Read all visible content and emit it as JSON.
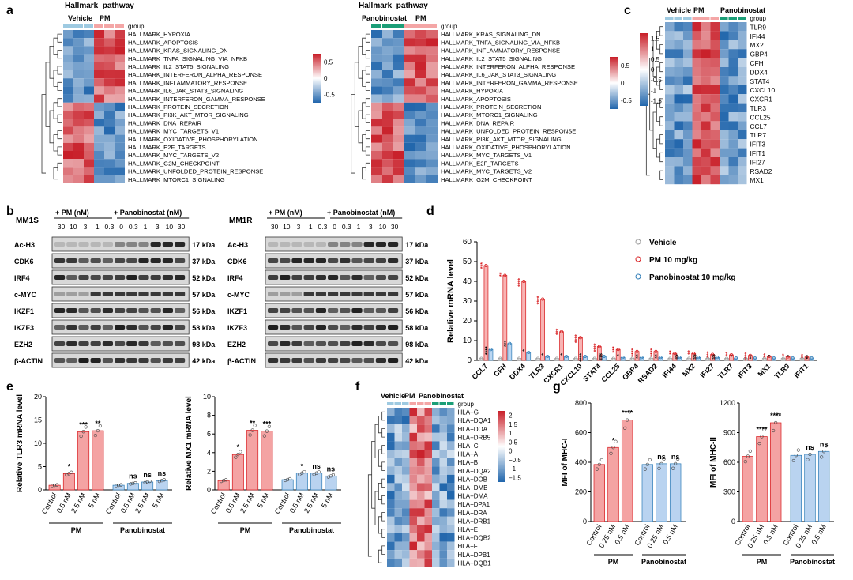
{
  "palette": {
    "red": "#d7191c",
    "blue": "#2c7bb6",
    "teal": "#1b9e77",
    "pink": "#f4a6a6",
    "light_blue": "#9ecae1",
    "bar_red": "#f08080",
    "bar_blue": "#a6c8ee",
    "gel_dark": "#2a2a2a",
    "grey": "#888888"
  },
  "panel_a": {
    "letter": "a",
    "left": {
      "heading": "Hallmark_pathway",
      "group_labels": [
        "Vehicle",
        "PM"
      ],
      "group_word": "group",
      "rows": [
        "HALLMARK_HYPOXIA",
        "HALLMARK_APOPTOSIS",
        "HALLMARK_KRAS_SIGNALING_DN",
        "HALLMARK_TNFA_SIGNALING_VIA_NFKB",
        "HALLMARK_IL2_STAT5_SIGNALING",
        "HALLMARK_INTERFERON_ALPHA_RESPONSE",
        "HALLMARK_INFLAMMATORY_RESPONSE",
        "HALLMARK_IL6_JAK_STAT3_SIGNALING",
        "HALLMARK_INTERFERON_GAMMA_RESPONSE",
        "HALLMARK_PROTEIN_SECRETION",
        "HALLMARK_PI3K_AKT_MTOR_SIGNALING",
        "HALLMARK_DNA_REPAIR",
        "HALLMARK_MYC_TARGETS_V1",
        "HALLMARK_OXIDATIVE_PHOSPHORYLATION",
        "HALLMARK_E2F_TARGETS",
        "HALLMARK_MYC_TARGETS_V2",
        "HALLMARK_G2M_CHECKPOINT",
        "HALLMARK_UNFOLDED_PROTEIN_RESPONSE",
        "HALLMARK_MTORC1_SIGNALING"
      ],
      "legend": [
        "0.5",
        "0",
        "-0.5"
      ]
    },
    "right": {
      "heading": "Hallmark_pathway",
      "group_labels": [
        "Panobinostat",
        "PM"
      ],
      "group_word": "group",
      "rows": [
        "HALLMARK_KRAS_SIGNALING_DN",
        "HALLMARK_TNFA_SIGNALING_VIA_NFKB",
        "HALLMARK_INFLAMMATORY_RESPONSE",
        "HALLMARK_IL2_STAT5_SIGNALING",
        "HALLMARK_INTERFERON_ALPHA_RESPONSE",
        "HALLMARK_IL6_JAK_STAT3_SIGNALING",
        "HALLMARK_INTERFERON_GAMMA_RESPONSE",
        "HALLMARK_HYPOXIA",
        "HALLMARK_APOPTOSIS",
        "HALLMARK_PROTEIN_SECRETION",
        "HALLMARK_MTORC1_SIGNALING",
        "HALLMARK_DNA_REPAIR",
        "HALLMARK_UNFOLDED_PROTEIN_RESPONSE",
        "HALLMARK_PI3K_AKT_MTOR_SIGNALING",
        "HALLMARK_OXIDATIVE_PHOSPHORYLATION",
        "HALLMARK_MYC_TARGETS_V1",
        "HALLMARK_E2F_TARGETS",
        "HALLMARK_MYC_TARGETS_V2",
        "HALLMARK_G2M_CHECKPOINT"
      ],
      "legend": [
        "0.5",
        "0",
        "-0.5"
      ]
    }
  },
  "panel_b": {
    "letter": "b",
    "left": {
      "cell": "MM1S",
      "treat1": "+ PM (nM)",
      "treat2": "+ Panobinostat (nM)",
      "doses": [
        "30",
        "10",
        "3",
        "1",
        "0.3",
        "0",
        "0.3",
        "1",
        "3",
        "10",
        "30"
      ],
      "proteins": [
        "Ac-H3",
        "CDK6",
        "IRF4",
        "c-MYC",
        "IKZF1",
        "IKZF3",
        "EZH2",
        "β-ACTIN"
      ],
      "sizes": [
        "17 kDa",
        "37 kDa",
        "52 kDa",
        "57 kDa",
        "56 kDa",
        "58 kDa",
        "98 kDa",
        "42 kDa"
      ]
    },
    "right": {
      "cell": "MM1R",
      "treat1": "+ PM (nM)",
      "treat2": "+ Panobinostat (nM)",
      "doses": [
        "30",
        "10",
        "3",
        "1",
        "0.3",
        "0",
        "0.3",
        "1",
        "3",
        "10",
        "30"
      ],
      "proteins": [
        "Ac-H3",
        "CDK6",
        "IRF4",
        "c-MYC",
        "IKZF1",
        "IKZF3",
        "EZH2",
        "β-ACTIN"
      ],
      "sizes": [
        "17 kDa",
        "37 kDa",
        "52 kDa",
        "57 kDa",
        "56 kDa",
        "58 kDa",
        "98 kDa",
        "42 kDa"
      ]
    }
  },
  "panel_c": {
    "letter": "c",
    "group_labels": [
      "Vehicle",
      "PM",
      "Panobinostat"
    ],
    "group_word": "group",
    "rows": [
      "TLR9",
      "IFI44",
      "MX2",
      "GBP4",
      "CFH",
      "DDX4",
      "STAT4",
      "CXCL10",
      "CXCR1",
      "TLR3",
      "CCL25",
      "CCL7",
      "TLR7",
      "IFIT3",
      "IFIT1",
      "IFI27",
      "RSAD2",
      "MX1"
    ],
    "legend": [
      "1.5",
      "1",
      "0.5",
      "0",
      "-0.5",
      "-1",
      "-1.5"
    ]
  },
  "panel_d": {
    "letter": "d",
    "chart_data": {
      "type": "bar",
      "ylabel": "Relative mRNA level",
      "ylim": [
        0,
        60
      ],
      "yticks": [
        "0",
        "10",
        "20",
        "30",
        "40",
        "50",
        "60"
      ],
      "categories": [
        "CCL7",
        "CFH",
        "DDX4",
        "TLR3",
        "CXCR1",
        "CXCL10",
        "STAT4",
        "CCL25",
        "GBP4",
        "RSAD2",
        "IFI44",
        "MX2",
        "IFI27",
        "TLR7",
        "IFIT3",
        "MX1",
        "TLR9",
        "IFIT1"
      ],
      "series": [
        {
          "name": "Vehicle",
          "values": [
            1,
            1,
            1,
            1,
            1,
            1,
            1,
            1,
            1,
            1,
            1,
            1,
            1,
            1,
            1,
            1,
            1,
            1
          ]
        },
        {
          "name": "PM 10 mg/kg",
          "values": [
            48,
            43,
            40,
            31,
            14.5,
            11.5,
            7,
            5.5,
            4.5,
            4.5,
            3.5,
            3.5,
            3,
            2.8,
            2.5,
            2,
            1.8,
            1.7
          ]
        },
        {
          "name": "Panobinostat 10 mg/kg",
          "values": [
            5.5,
            8.5,
            4,
            2,
            2,
            2,
            2,
            1.5,
            1.5,
            1.5,
            1.5,
            1.5,
            1.5,
            1.2,
            1.2,
            1.2,
            1.2,
            1.2
          ]
        }
      ],
      "sig_pm": [
        "***",
        "**",
        "****",
        "****",
        "***",
        "****",
        "****",
        "***",
        "****",
        "****",
        "**",
        "**",
        "***",
        "**",
        "****",
        "**",
        "*",
        "**"
      ],
      "sig_pan": [
        "****",
        "***",
        "*",
        "*",
        "*",
        "****",
        "ns",
        "*",
        "**",
        "**",
        "ns",
        "ns",
        "ns",
        "*",
        "**",
        "*",
        "*",
        "**"
      ]
    }
  },
  "panel_e": {
    "letter": "e",
    "charts": [
      {
        "ylabel": "Relative TLR3 mRNA level",
        "ylim": [
          0,
          20
        ],
        "yticks": [
          "0",
          "5",
          "10",
          "15",
          "20"
        ],
        "categories": [
          "Control",
          "0.5 nM",
          "2.5 nM",
          "5 nM",
          "Control",
          "0.5 nM",
          "2.5 nM",
          "5 nM"
        ],
        "values": [
          1,
          3.5,
          12.5,
          12.7,
          1,
          1.4,
          1.7,
          2
        ],
        "sig": [
          "",
          "*",
          "***",
          "**",
          "",
          "ns",
          "ns",
          "ns"
        ],
        "groups": [
          "PM",
          "Panobinostat"
        ]
      },
      {
        "ylabel": "Relative MX1 mRNA level",
        "ylim": [
          0,
          10
        ],
        "yticks": [
          "0",
          "2",
          "4",
          "6",
          "8",
          "10"
        ],
        "categories": [
          "Control",
          "0.5 nM",
          "2.5 nM",
          "5 nM",
          "Control",
          "0.5 nM",
          "2.5 nM",
          "5 nM"
        ],
        "values": [
          1,
          3.8,
          6.4,
          6.3,
          1.1,
          1.8,
          1.8,
          1.5
        ],
        "sig": [
          "",
          "*",
          "**",
          "***",
          "",
          "*",
          "ns",
          "ns"
        ],
        "groups": [
          "PM",
          "Panobinostat"
        ]
      }
    ]
  },
  "panel_f": {
    "letter": "f",
    "group_labels": [
      "Vehicle",
      "PM",
      "Panobinostat"
    ],
    "group_word": "group",
    "rows": [
      "HLA−G",
      "HLA−DQA1",
      "HLA−DOA",
      "HLA−DRB5",
      "HLA−C",
      "HLA−A",
      "HLA−B",
      "HLA−DQA2",
      "HLA−DOB",
      "HLA−DMB",
      "HLA−DMA",
      "HLA−DPA1",
      "HLA−DRA",
      "HLA−DRB1",
      "HLA−E",
      "HLA−DQB2",
      "HLA−F",
      "HLA−DPB1",
      "HLA−DQB1"
    ],
    "legend": [
      "2",
      "1.5",
      "1",
      "0.5",
      "0",
      "−0.5",
      "−1",
      "−1.5"
    ]
  },
  "panel_g": {
    "letter": "g",
    "charts": [
      {
        "ylabel": "MFI of MHC-I",
        "ylim": [
          0,
          800
        ],
        "yticks": [
          "0",
          "200",
          "400",
          "600",
          "800"
        ],
        "categories": [
          "Control",
          "0.25 nM",
          "0.5 nM",
          "Control",
          "0.25 nM",
          "0.5 nM"
        ],
        "values": [
          385,
          500,
          685,
          385,
          390,
          390
        ],
        "sig": [
          "",
          "*",
          "****",
          "",
          "ns",
          "ns"
        ],
        "groups": [
          "PM",
          "Panobinostat"
        ]
      },
      {
        "ylabel": "MFI of MHC-II",
        "ylim": [
          0,
          1200
        ],
        "yticks": [
          "0",
          "300",
          "600",
          "900",
          "1200"
        ],
        "categories": [
          "Control",
          "0.25 nM",
          "0.5 nM",
          "Control",
          "0.25 nM",
          "0.5 nM"
        ],
        "values": [
          660,
          860,
          1000,
          670,
          680,
          710
        ],
        "sig": [
          "",
          "****",
          "****",
          "",
          "ns",
          "ns"
        ],
        "groups": [
          "PM",
          "Panobinostat"
        ]
      }
    ]
  }
}
